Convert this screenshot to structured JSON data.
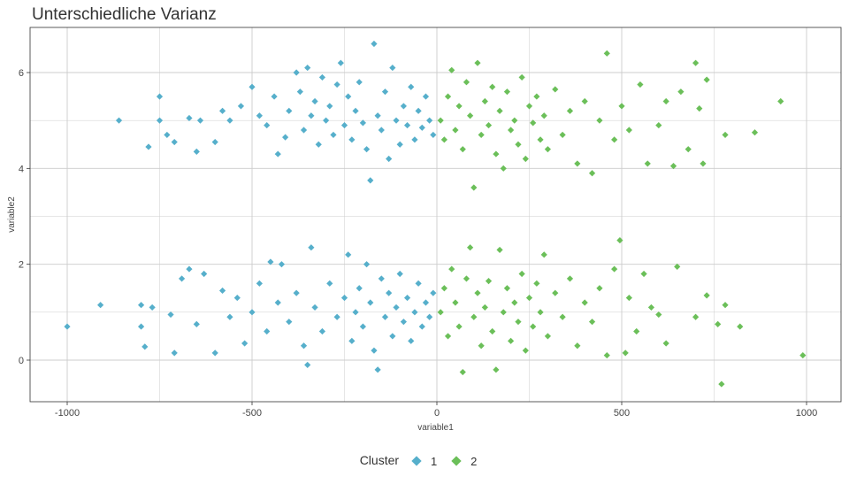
{
  "chart_data": {
    "type": "scatter",
    "title": "Unterschiedliche Varianz",
    "xlabel": "variable1",
    "ylabel": "variable2",
    "xlim": [
      -1000,
      1000
    ],
    "ylim": [
      -0.8,
      6.9
    ],
    "x_ticks": [
      -1000,
      -500,
      0,
      500,
      1000
    ],
    "y_ticks": [
      0,
      2,
      4,
      6
    ],
    "grid": true,
    "legend": {
      "title": "Cluster",
      "position": "bottom",
      "entries": [
        "1",
        "2"
      ]
    },
    "series": [
      {
        "name": "1",
        "color": "#56afcb",
        "points": [
          [
            -860,
            5.0
          ],
          [
            -780,
            4.45
          ],
          [
            -750,
            5.5
          ],
          [
            -750,
            5.0
          ],
          [
            -730,
            4.7
          ],
          [
            -710,
            4.55
          ],
          [
            -670,
            5.05
          ],
          [
            -650,
            4.35
          ],
          [
            -640,
            5.0
          ],
          [
            -600,
            4.55
          ],
          [
            -580,
            5.2
          ],
          [
            -560,
            5.0
          ],
          [
            -530,
            5.3
          ],
          [
            -500,
            5.7
          ],
          [
            -480,
            5.1
          ],
          [
            -460,
            4.9
          ],
          [
            -440,
            5.5
          ],
          [
            -430,
            4.3
          ],
          [
            -410,
            4.65
          ],
          [
            -400,
            5.2
          ],
          [
            -380,
            6.0
          ],
          [
            -370,
            5.6
          ],
          [
            -360,
            4.8
          ],
          [
            -350,
            6.1
          ],
          [
            -340,
            5.1
          ],
          [
            -330,
            5.4
          ],
          [
            -320,
            4.5
          ],
          [
            -310,
            5.9
          ],
          [
            -300,
            5.0
          ],
          [
            -290,
            5.3
          ],
          [
            -280,
            4.7
          ],
          [
            -270,
            5.75
          ],
          [
            -260,
            6.2
          ],
          [
            -250,
            4.9
          ],
          [
            -240,
            5.5
          ],
          [
            -230,
            4.6
          ],
          [
            -220,
            5.2
          ],
          [
            -210,
            5.8
          ],
          [
            -200,
            4.95
          ],
          [
            -190,
            4.4
          ],
          [
            -180,
            3.75
          ],
          [
            -170,
            6.6
          ],
          [
            -160,
            5.1
          ],
          [
            -150,
            4.8
          ],
          [
            -140,
            5.6
          ],
          [
            -130,
            4.2
          ],
          [
            -120,
            6.1
          ],
          [
            -110,
            5.0
          ],
          [
            -100,
            4.5
          ],
          [
            -90,
            5.3
          ],
          [
            -80,
            4.9
          ],
          [
            -70,
            5.7
          ],
          [
            -60,
            4.6
          ],
          [
            -50,
            5.2
          ],
          [
            -40,
            4.85
          ],
          [
            -30,
            5.5
          ],
          [
            -20,
            5.0
          ],
          [
            -10,
            4.7
          ],
          [
            -1000,
            0.7
          ],
          [
            -910,
            1.15
          ],
          [
            -800,
            1.15
          ],
          [
            -800,
            0.7
          ],
          [
            -790,
            0.28
          ],
          [
            -770,
            1.1
          ],
          [
            -720,
            0.95
          ],
          [
            -710,
            0.15
          ],
          [
            -690,
            1.7
          ],
          [
            -670,
            1.9
          ],
          [
            -650,
            0.75
          ],
          [
            -630,
            1.8
          ],
          [
            -600,
            0.15
          ],
          [
            -580,
            1.45
          ],
          [
            -560,
            0.9
          ],
          [
            -540,
            1.3
          ],
          [
            -520,
            0.35
          ],
          [
            -500,
            1.0
          ],
          [
            -480,
            1.6
          ],
          [
            -460,
            0.6
          ],
          [
            -450,
            2.05
          ],
          [
            -430,
            1.2
          ],
          [
            -420,
            2.0
          ],
          [
            -400,
            0.8
          ],
          [
            -380,
            1.4
          ],
          [
            -360,
            0.3
          ],
          [
            -350,
            -0.1
          ],
          [
            -340,
            2.35
          ],
          [
            -330,
            1.1
          ],
          [
            -310,
            0.6
          ],
          [
            -290,
            1.6
          ],
          [
            -270,
            0.9
          ],
          [
            -250,
            1.3
          ],
          [
            -240,
            2.2
          ],
          [
            -230,
            0.4
          ],
          [
            -220,
            1.0
          ],
          [
            -210,
            1.5
          ],
          [
            -200,
            0.7
          ],
          [
            -190,
            2.0
          ],
          [
            -180,
            1.2
          ],
          [
            -170,
            0.2
          ],
          [
            -160,
            -0.2
          ],
          [
            -150,
            1.7
          ],
          [
            -140,
            0.9
          ],
          [
            -130,
            1.4
          ],
          [
            -120,
            0.5
          ],
          [
            -110,
            1.1
          ],
          [
            -100,
            1.8
          ],
          [
            -90,
            0.8
          ],
          [
            -80,
            1.3
          ],
          [
            -70,
            0.4
          ],
          [
            -60,
            1.0
          ],
          [
            -50,
            1.6
          ],
          [
            -40,
            0.7
          ],
          [
            -30,
            1.2
          ],
          [
            -20,
            0.9
          ],
          [
            -10,
            1.4
          ]
        ]
      },
      {
        "name": "2",
        "color": "#6bbf59",
        "points": [
          [
            10,
            5.0
          ],
          [
            20,
            4.6
          ],
          [
            30,
            5.5
          ],
          [
            40,
            6.05
          ],
          [
            50,
            4.8
          ],
          [
            60,
            5.3
          ],
          [
            70,
            4.4
          ],
          [
            80,
            5.8
          ],
          [
            90,
            5.1
          ],
          [
            100,
            3.6
          ],
          [
            110,
            6.2
          ],
          [
            120,
            4.7
          ],
          [
            130,
            5.4
          ],
          [
            140,
            4.9
          ],
          [
            150,
            5.7
          ],
          [
            160,
            4.3
          ],
          [
            170,
            5.2
          ],
          [
            180,
            4.0
          ],
          [
            190,
            5.6
          ],
          [
            200,
            4.8
          ],
          [
            210,
            5.0
          ],
          [
            220,
            4.5
          ],
          [
            230,
            5.9
          ],
          [
            240,
            4.2
          ],
          [
            250,
            5.3
          ],
          [
            260,
            4.95
          ],
          [
            270,
            5.5
          ],
          [
            280,
            4.6
          ],
          [
            290,
            5.1
          ],
          [
            300,
            4.4
          ],
          [
            320,
            5.65
          ],
          [
            340,
            4.7
          ],
          [
            360,
            5.2
          ],
          [
            380,
            4.1
          ],
          [
            400,
            5.4
          ],
          [
            420,
            3.9
          ],
          [
            440,
            5.0
          ],
          [
            460,
            6.4
          ],
          [
            480,
            4.6
          ],
          [
            500,
            5.3
          ],
          [
            520,
            4.8
          ],
          [
            550,
            5.75
          ],
          [
            570,
            4.1
          ],
          [
            600,
            4.9
          ],
          [
            620,
            5.4
          ],
          [
            640,
            4.05
          ],
          [
            660,
            5.6
          ],
          [
            680,
            4.4
          ],
          [
            700,
            6.2
          ],
          [
            710,
            5.25
          ],
          [
            720,
            4.1
          ],
          [
            730,
            5.85
          ],
          [
            780,
            4.7
          ],
          [
            860,
            4.75
          ],
          [
            930,
            5.4
          ],
          [
            10,
            1.0
          ],
          [
            20,
            1.5
          ],
          [
            30,
            0.5
          ],
          [
            40,
            1.9
          ],
          [
            50,
            1.2
          ],
          [
            60,
            0.7
          ],
          [
            70,
            -0.25
          ],
          [
            80,
            1.7
          ],
          [
            90,
            2.35
          ],
          [
            100,
            0.9
          ],
          [
            110,
            1.4
          ],
          [
            120,
            0.3
          ],
          [
            130,
            1.1
          ],
          [
            140,
            1.65
          ],
          [
            150,
            0.6
          ],
          [
            160,
            -0.2
          ],
          [
            170,
            2.3
          ],
          [
            180,
            1.0
          ],
          [
            190,
            1.5
          ],
          [
            200,
            0.4
          ],
          [
            210,
            1.2
          ],
          [
            220,
            0.8
          ],
          [
            230,
            1.8
          ],
          [
            240,
            0.2
          ],
          [
            250,
            1.3
          ],
          [
            260,
            0.7
          ],
          [
            270,
            1.6
          ],
          [
            280,
            1.0
          ],
          [
            290,
            2.2
          ],
          [
            300,
            0.5
          ],
          [
            320,
            1.4
          ],
          [
            340,
            0.9
          ],
          [
            360,
            1.7
          ],
          [
            380,
            0.3
          ],
          [
            400,
            1.2
          ],
          [
            420,
            0.8
          ],
          [
            440,
            1.5
          ],
          [
            460,
            0.1
          ],
          [
            480,
            1.9
          ],
          [
            495,
            2.5
          ],
          [
            510,
            0.15
          ],
          [
            520,
            1.3
          ],
          [
            540,
            0.6
          ],
          [
            560,
            1.8
          ],
          [
            580,
            1.1
          ],
          [
            600,
            0.95
          ],
          [
            620,
            0.35
          ],
          [
            650,
            1.95
          ],
          [
            700,
            0.9
          ],
          [
            730,
            1.35
          ],
          [
            760,
            0.75
          ],
          [
            780,
            1.15
          ],
          [
            820,
            0.7
          ],
          [
            770,
            -0.5
          ],
          [
            990,
            0.1
          ]
        ]
      }
    ]
  }
}
